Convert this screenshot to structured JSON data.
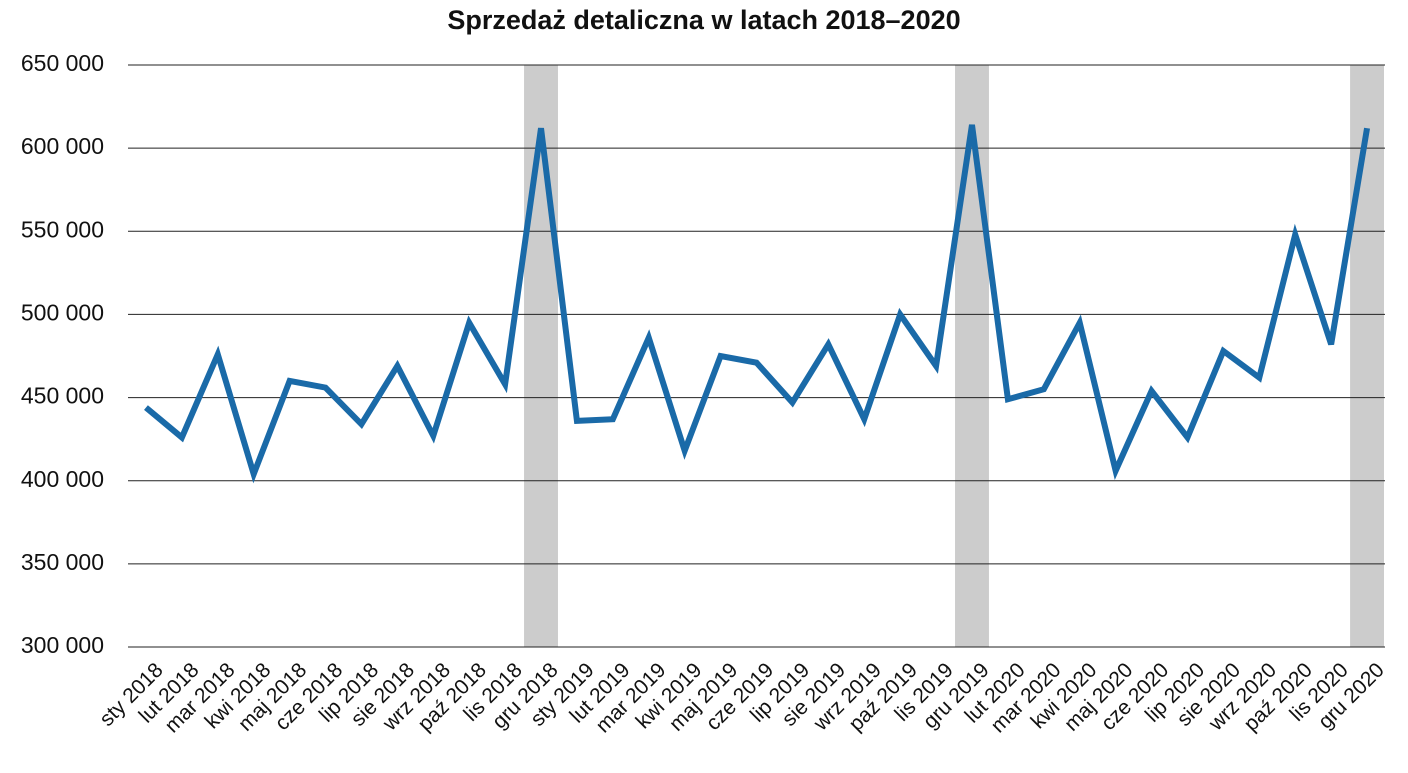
{
  "chart_data": {
    "type": "line",
    "title": "Sprzedaż detaliczna w latach 2018–2020",
    "categories": [
      "sty 2018",
      "lut 2018",
      "mar 2018",
      "kwi 2018",
      "maj 2018",
      "cze 2018",
      "lip 2018",
      "sie 2018",
      "wrz 2018",
      "paź 2018",
      "lis 2018",
      "gru 2018",
      "sty 2019",
      "lut 2019",
      "mar 2019",
      "kwi 2019",
      "maj 2019",
      "cze 2019",
      "lip 2019",
      "sie 2019",
      "wrz 2019",
      "paź 2019",
      "lis 2019",
      "gru 2019",
      "lut 2020",
      "mar 2020",
      "kwi 2020",
      "maj 2020",
      "cze 2020",
      "lip 2020",
      "sie 2020",
      "wrz 2020",
      "paź 2020",
      "lis 2020",
      "gru 2020"
    ],
    "values": [
      444000,
      426000,
      476000,
      404000,
      460000,
      456000,
      434000,
      469000,
      427000,
      495000,
      458000,
      612000,
      436000,
      437000,
      486000,
      418000,
      475000,
      471000,
      447000,
      482000,
      437000,
      500000,
      469000,
      614000,
      449000,
      455000,
      495000,
      406000,
      454000,
      426000,
      478000,
      462000,
      548000,
      482000,
      612000
    ],
    "color": "#1a6aa8",
    "highlight_indices": [
      11,
      23,
      34
    ],
    "highlight_color": "#cccccc",
    "ylim": [
      300000,
      650000
    ],
    "yticks": [
      {
        "value": 300000,
        "label": "300 000"
      },
      {
        "value": 350000,
        "label": "350 000"
      },
      {
        "value": 400000,
        "label": "400 000"
      },
      {
        "value": 450000,
        "label": "450 000"
      },
      {
        "value": 500000,
        "label": "500 000"
      },
      {
        "value": 550000,
        "label": "550 000"
      },
      {
        "value": 600000,
        "label": "600 000"
      },
      {
        "value": 650000,
        "label": "650 000"
      }
    ],
    "grid": true
  }
}
